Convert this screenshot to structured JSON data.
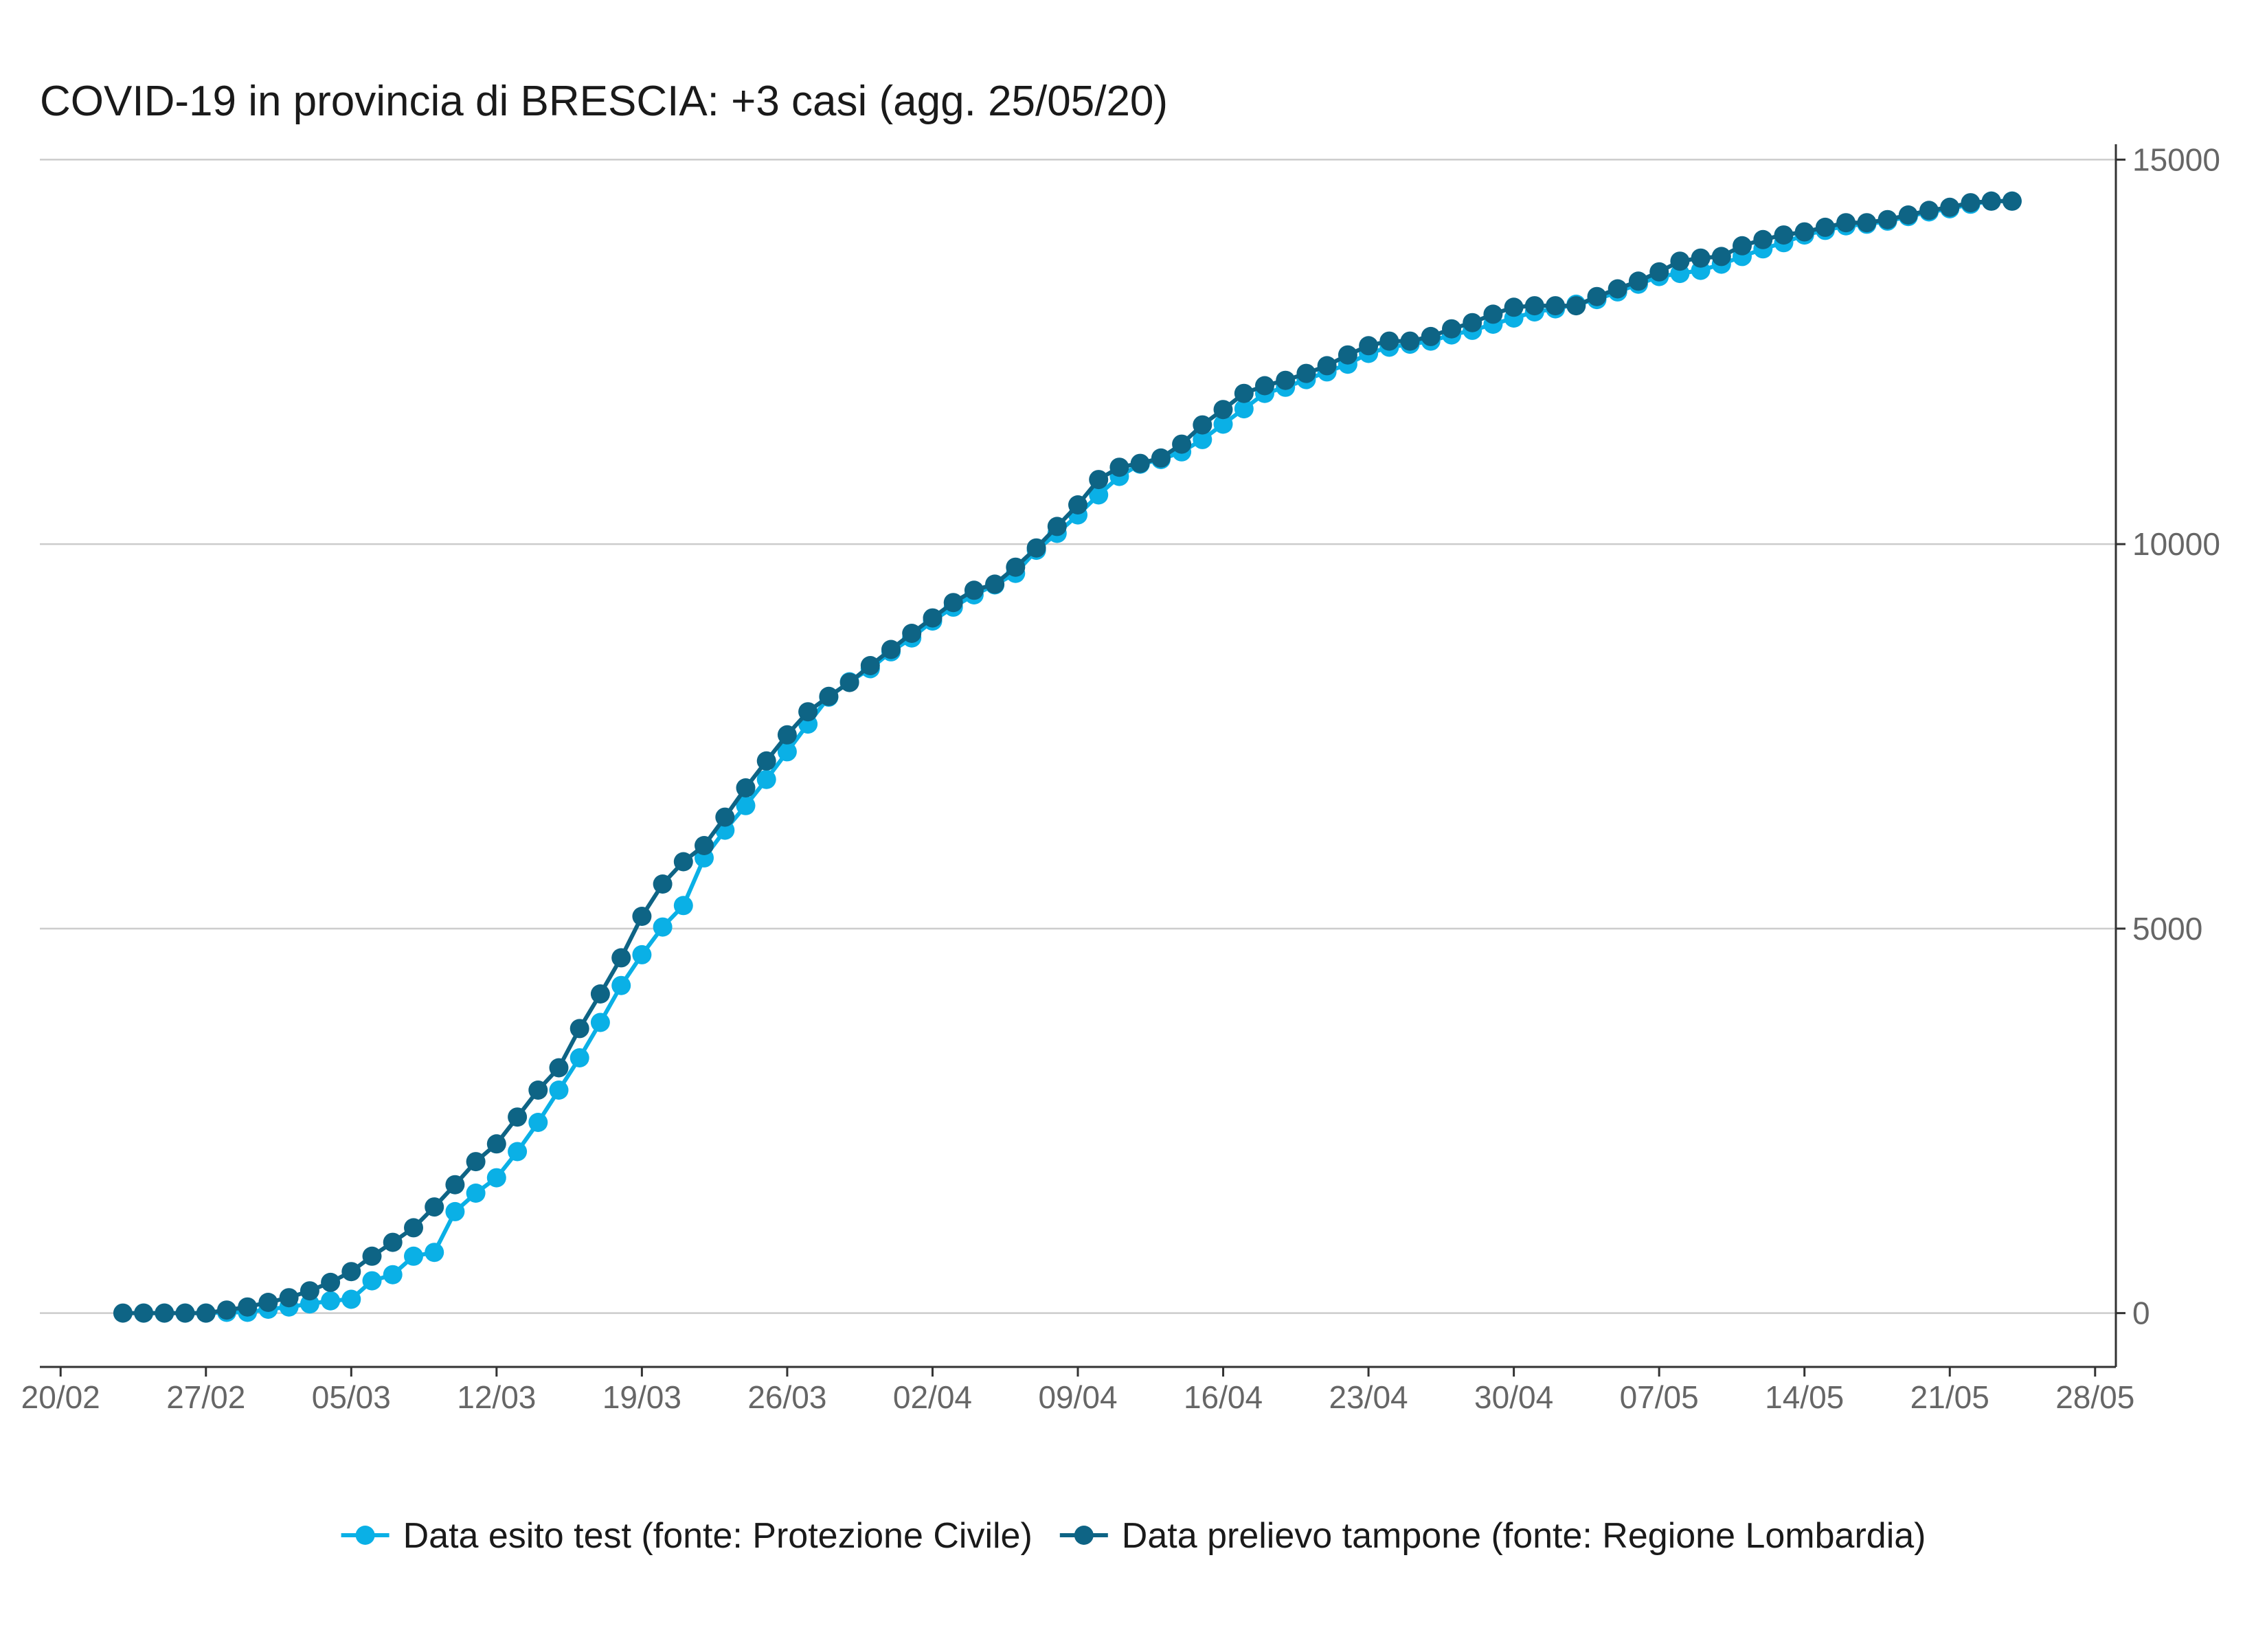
{
  "chart_data": {
    "type": "line",
    "title": "COVID-19 in provincia di BRESCIA: +3 casi (agg. 25/05/20)",
    "xlabel": "",
    "ylabel": "",
    "x_start": "2020-02-23",
    "x_ticks": [
      "20/02",
      "27/02",
      "05/03",
      "12/03",
      "19/03",
      "26/03",
      "02/04",
      "09/04",
      "16/04",
      "23/04",
      "30/04",
      "07/05",
      "14/05",
      "21/05",
      "28/05"
    ],
    "x_tick_dates": [
      "2020-02-20",
      "2020-02-27",
      "2020-03-05",
      "2020-03-12",
      "2020-03-19",
      "2020-03-26",
      "2020-04-02",
      "2020-04-09",
      "2020-04-16",
      "2020-04-23",
      "2020-04-30",
      "2020-05-07",
      "2020-05-14",
      "2020-05-21",
      "2020-05-28"
    ],
    "y_ticks": [
      0,
      5000,
      10000,
      15000
    ],
    "ylim": [
      -700,
      15200
    ],
    "xlim": [
      "2020-02-19",
      "2020-05-29"
    ],
    "grid": true,
    "legend_position": "bottom",
    "series": [
      {
        "name": "Data esito test (fonte: Protezione Civile)",
        "color": "#0ab0e6",
        "start": "2020-02-24",
        "values": [
          0,
          0,
          0,
          0,
          10,
          10,
          50,
          80,
          120,
          160,
          180,
          420,
          500,
          740,
          790,
          1320,
          1560,
          1760,
          2100,
          2480,
          2900,
          3320,
          3780,
          4260,
          4660,
          5020,
          5300,
          5920,
          6280,
          6600,
          6940,
          7300,
          7660,
          8010,
          8210,
          8380,
          8600,
          8780,
          9000,
          9180,
          9340,
          9470,
          9620,
          9920,
          10140,
          10380,
          10640,
          10880,
          11040,
          11100,
          11200,
          11360,
          11560,
          11760,
          11960,
          12040,
          12140,
          12240,
          12340,
          12480,
          12560,
          12600,
          12640,
          12720,
          12780,
          12860,
          12940,
          13020,
          13060,
          13120,
          13180,
          13280,
          13380,
          13480,
          13520,
          13560,
          13640,
          13740,
          13840,
          13920,
          14020,
          14080,
          14140,
          14160,
          14200,
          14260,
          14320,
          14360,
          14420,
          14460,
          14460
        ]
      },
      {
        "name": "Data prelievo tampone (fonte: Regione Lombardia)",
        "color": "#0e6485",
        "start": "2020-02-23",
        "values": [
          0,
          0,
          0,
          0,
          0,
          40,
          80,
          140,
          200,
          290,
          400,
          540,
          740,
          920,
          1110,
          1380,
          1670,
          1970,
          2200,
          2550,
          2900,
          3190,
          3700,
          4150,
          4620,
          5160,
          5580,
          5870,
          6080,
          6450,
          6830,
          7180,
          7520,
          7820,
          8020,
          8200,
          8420,
          8630,
          8840,
          9040,
          9240,
          9400,
          9480,
          9700,
          9950,
          10230,
          10510,
          10840,
          11000,
          11050,
          11120,
          11300,
          11550,
          11750,
          11960,
          12060,
          12130,
          12220,
          12320,
          12460,
          12580,
          12640,
          12640,
          12700,
          12800,
          12880,
          12990,
          13080,
          13100,
          13100,
          13100,
          13220,
          13320,
          13420,
          13540,
          13680,
          13720,
          13740,
          13880,
          13960,
          14020,
          14060,
          14120,
          14180,
          14180,
          14220,
          14280,
          14340,
          14380,
          14440,
          14460,
          14460
        ]
      }
    ]
  }
}
